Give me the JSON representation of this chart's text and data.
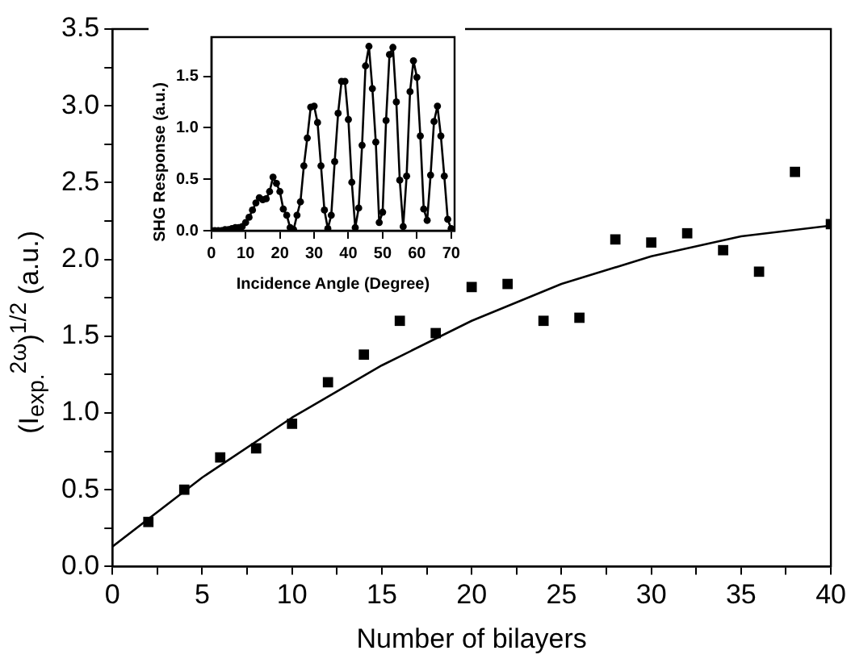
{
  "chart_data": [
    {
      "type": "scatter",
      "xlabel": "Number of bilayers",
      "ylabel": "(I$_{exp.}$$^{2ω}$)$^{1/2}$ (a.u.)",
      "xlim": [
        0,
        40
      ],
      "ylim": [
        0,
        3.5
      ],
      "xticks": [
        0,
        {
          "value": 2.5,
          "label": null
        },
        5,
        {
          "value": 7.5,
          "label": null
        },
        10,
        {
          "value": 12.5,
          "label": null
        },
        15,
        {
          "value": 17.5,
          "label": null
        },
        20,
        {
          "value": 22.5,
          "label": null
        },
        25,
        {
          "value": 27.5,
          "label": null
        },
        30,
        {
          "value": 32.5,
          "label": null
        },
        35,
        {
          "value": 37.5,
          "label": null
        },
        40
      ],
      "yticks": [
        {
          "value": 0,
          "label": "0.0"
        },
        {
          "value": 0.25,
          "label": null
        },
        {
          "value": 0.5,
          "label": "0.5"
        },
        {
          "value": 0.75,
          "label": null
        },
        {
          "value": 1,
          "label": "1.0"
        },
        {
          "value": 1.25,
          "label": null
        },
        {
          "value": 1.5,
          "label": "1.5"
        },
        {
          "value": 1.75,
          "label": null
        },
        {
          "value": 2,
          "label": "2.0"
        },
        {
          "value": 2.25,
          "label": null
        },
        {
          "value": 2.5,
          "label": "2.5"
        },
        {
          "value": 2.75,
          "label": null
        },
        {
          "value": 3,
          "label": "3.0"
        },
        {
          "value": 3.25,
          "label": null
        },
        {
          "value": 3.5,
          "label": "3.5"
        }
      ],
      "grid": false,
      "legend": false,
      "marker": "square",
      "series": [
        {
          "color": "#000000",
          "x": [
            2,
            4,
            6,
            8,
            10,
            12,
            14,
            16,
            18,
            20,
            22,
            24,
            26,
            28,
            30,
            32,
            34,
            36,
            38,
            40
          ],
          "values": [
            0.29,
            0.5,
            0.71,
            0.77,
            0.93,
            1.2,
            1.38,
            1.6,
            1.52,
            1.82,
            1.84,
            1.6,
            1.62,
            2.13,
            2.11,
            2.17,
            2.06,
            1.92,
            2.57,
            2.23
          ]
        },
        {
          "type": "line",
          "color": "#000000",
          "marker": "none",
          "x": [
            0,
            5,
            10,
            15,
            20,
            25,
            30,
            35,
            40
          ],
          "values": [
            0.13,
            0.58,
            0.97,
            1.31,
            1.6,
            1.84,
            2.02,
            2.15,
            2.22
          ]
        }
      ]
    },
    {
      "type": "line",
      "xlabel": "Incidence Angle (Degree)",
      "ylabel": "SHG Response (a.u.)",
      "xlim": [
        0,
        71
      ],
      "ylim": [
        0,
        1.88
      ],
      "xticks": [
        0,
        10,
        20,
        30,
        40,
        50,
        60,
        70
      ],
      "yticks": [
        {
          "value": 0,
          "label": "0.0"
        },
        {
          "value": 0.5,
          "label": "0.5"
        },
        {
          "value": 1,
          "label": "1.0"
        },
        {
          "value": 1.5,
          "label": "1.5"
        }
      ],
      "grid": false,
      "legend": false,
      "marker": "circle",
      "series": [
        {
          "color": "#000000",
          "x": [
            0,
            1,
            2,
            3,
            4,
            5,
            6,
            7,
            8,
            9,
            10,
            11,
            12,
            13,
            14,
            15,
            16,
            17,
            18,
            19,
            20,
            21,
            22,
            23,
            24,
            25,
            26,
            27,
            28,
            29,
            30,
            31,
            32,
            33,
            34,
            35,
            36,
            37,
            38,
            39,
            40,
            41,
            42,
            43,
            44,
            45,
            46,
            47,
            48,
            49,
            50,
            51,
            52,
            53,
            54,
            55,
            56,
            57,
            58,
            59,
            60,
            61,
            62,
            63,
            64,
            65,
            66,
            67,
            68,
            69,
            70
          ],
          "values": [
            0,
            0,
            0,
            0,
            0.01,
            0.01,
            0.02,
            0.03,
            0.03,
            0.04,
            0.08,
            0.13,
            0.2,
            0.27,
            0.32,
            0.3,
            0.31,
            0.38,
            0.52,
            0.46,
            0.38,
            0.21,
            0.15,
            0.03,
            0.01,
            0.15,
            0.28,
            0.63,
            0.9,
            1.2,
            1.21,
            1.05,
            0.63,
            0.2,
            0.02,
            0.15,
            0.67,
            1.14,
            1.45,
            1.45,
            1.08,
            0.47,
            0.03,
            0.22,
            0.83,
            1.6,
            1.79,
            1.38,
            0.86,
            0.08,
            0.18,
            1.07,
            1.71,
            1.78,
            1.25,
            0.49,
            0.04,
            0.53,
            1.35,
            1.65,
            1.49,
            0.92,
            0.21,
            0.1,
            0.54,
            1.06,
            1.21,
            0.92,
            0.53,
            0.11,
            0.02
          ]
        }
      ]
    }
  ]
}
